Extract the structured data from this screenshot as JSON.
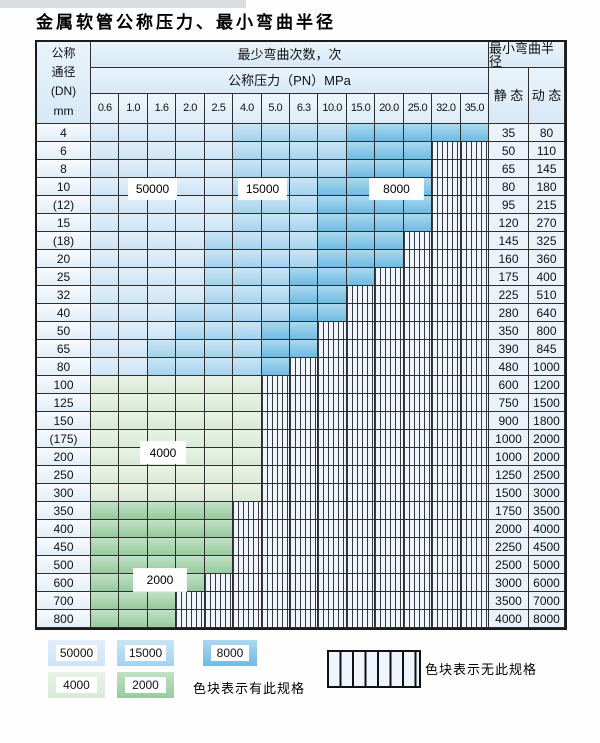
{
  "title": "金属软管公称压力、最小弯曲半径",
  "table": {
    "header": {
      "dn_label_lines": [
        "公称",
        "通径",
        "(DN)",
        "mm"
      ],
      "bend_cycles": "最少弯曲次数，次",
      "pressure": "公称压力（PN）MPa",
      "pressure_values": [
        "0.6",
        "1.0",
        "1.6",
        "2.0",
        "2.5",
        "4.0",
        "5.0",
        "6.3",
        "10.0",
        "15.0",
        "20.0",
        "25.0",
        "32.0",
        "35.0"
      ],
      "radius": "最小弯曲半径",
      "static_label": "静 态",
      "dynamic_label": "动 态"
    },
    "zone_meaning": {
      "b1": "50000次",
      "b2": "15000次",
      "b3": "8000次",
      "g1": "4000次",
      "g2": "2000次",
      "x": "无此规格"
    },
    "rows": [
      {
        "dn": "4",
        "static": "35",
        "dynamic": "80",
        "zones": [
          "b1",
          "b1",
          "b1",
          "b1",
          "b1",
          "b2",
          "b2",
          "b2",
          "b2",
          "b3",
          "b3",
          "b3",
          "b3",
          "b3"
        ]
      },
      {
        "dn": "6",
        "static": "50",
        "dynamic": "110",
        "zones": [
          "b1",
          "b1",
          "b1",
          "b1",
          "b1",
          "b2",
          "b2",
          "b2",
          "b2",
          "b3",
          "b3",
          "b3",
          "x",
          "x"
        ]
      },
      {
        "dn": "8",
        "static": "65",
        "dynamic": "145",
        "zones": [
          "b1",
          "b1",
          "b1",
          "b1",
          "b1",
          "b2",
          "b2",
          "b2",
          "b2",
          "b3",
          "b3",
          "b3",
          "x",
          "x"
        ]
      },
      {
        "dn": "10",
        "static": "80",
        "dynamic": "180",
        "zones": [
          "b1",
          "b1",
          "b1",
          "b1",
          "b1",
          "b2",
          "b2",
          "b2",
          "b3",
          "b3",
          "b3",
          "b3",
          "x",
          "x"
        ]
      },
      {
        "dn": "(12)",
        "static": "95",
        "dynamic": "215",
        "zones": [
          "b1",
          "b1",
          "b1",
          "b1",
          "b1",
          "b2",
          "b2",
          "b2",
          "b3",
          "b3",
          "b3",
          "b3",
          "x",
          "x"
        ]
      },
      {
        "dn": "15",
        "static": "120",
        "dynamic": "270",
        "zones": [
          "b1",
          "b1",
          "b1",
          "b1",
          "b1",
          "b2",
          "b2",
          "b2",
          "b3",
          "b3",
          "b3",
          "b3",
          "x",
          "x"
        ]
      },
      {
        "dn": "(18)",
        "static": "145",
        "dynamic": "325",
        "zones": [
          "b1",
          "b1",
          "b1",
          "b1",
          "b2",
          "b2",
          "b2",
          "b2",
          "b3",
          "b3",
          "b3",
          "x",
          "x",
          "x"
        ]
      },
      {
        "dn": "20",
        "static": "160",
        "dynamic": "360",
        "zones": [
          "b1",
          "b1",
          "b1",
          "b1",
          "b2",
          "b2",
          "b2",
          "b2",
          "b3",
          "b3",
          "b3",
          "x",
          "x",
          "x"
        ]
      },
      {
        "dn": "25",
        "static": "175",
        "dynamic": "400",
        "zones": [
          "b1",
          "b1",
          "b1",
          "b1",
          "b2",
          "b2",
          "b2",
          "b3",
          "b3",
          "b3",
          "x",
          "x",
          "x",
          "x"
        ]
      },
      {
        "dn": "32",
        "static": "225",
        "dynamic": "510",
        "zones": [
          "b1",
          "b1",
          "b1",
          "b1",
          "b2",
          "b2",
          "b2",
          "b3",
          "b3",
          "x",
          "x",
          "x",
          "x",
          "x"
        ]
      },
      {
        "dn": "40",
        "static": "280",
        "dynamic": "640",
        "zones": [
          "b1",
          "b1",
          "b1",
          "b2",
          "b2",
          "b2",
          "b2",
          "b3",
          "b3",
          "x",
          "x",
          "x",
          "x",
          "x"
        ]
      },
      {
        "dn": "50",
        "static": "350",
        "dynamic": "800",
        "zones": [
          "b1",
          "b1",
          "b1",
          "b2",
          "b2",
          "b2",
          "b3",
          "b3",
          "x",
          "x",
          "x",
          "x",
          "x",
          "x"
        ]
      },
      {
        "dn": "65",
        "static": "390",
        "dynamic": "845",
        "zones": [
          "b1",
          "b1",
          "b2",
          "b2",
          "b2",
          "b2",
          "b3",
          "b3",
          "x",
          "x",
          "x",
          "x",
          "x",
          "x"
        ]
      },
      {
        "dn": "80",
        "static": "480",
        "dynamic": "1000",
        "zones": [
          "b1",
          "b1",
          "b2",
          "b2",
          "b2",
          "b2",
          "b3",
          "x",
          "x",
          "x",
          "x",
          "x",
          "x",
          "x"
        ]
      },
      {
        "dn": "100",
        "static": "600",
        "dynamic": "1200",
        "zones": [
          "g1",
          "g1",
          "g1",
          "g1",
          "g1",
          "g1",
          "x",
          "x",
          "x",
          "x",
          "x",
          "x",
          "x",
          "x"
        ]
      },
      {
        "dn": "125",
        "static": "750",
        "dynamic": "1500",
        "zones": [
          "g1",
          "g1",
          "g1",
          "g1",
          "g1",
          "g1",
          "x",
          "x",
          "x",
          "x",
          "x",
          "x",
          "x",
          "x"
        ]
      },
      {
        "dn": "150",
        "static": "900",
        "dynamic": "1800",
        "zones": [
          "g1",
          "g1",
          "g1",
          "g1",
          "g1",
          "g1",
          "x",
          "x",
          "x",
          "x",
          "x",
          "x",
          "x",
          "x"
        ]
      },
      {
        "dn": "(175)",
        "static": "1000",
        "dynamic": "2000",
        "zones": [
          "g1",
          "g1",
          "g1",
          "g1",
          "g1",
          "g1",
          "x",
          "x",
          "x",
          "x",
          "x",
          "x",
          "x",
          "x"
        ]
      },
      {
        "dn": "200",
        "static": "1000",
        "dynamic": "2000",
        "zones": [
          "g1",
          "g1",
          "g1",
          "g1",
          "g1",
          "g1",
          "x",
          "x",
          "x",
          "x",
          "x",
          "x",
          "x",
          "x"
        ]
      },
      {
        "dn": "250",
        "static": "1250",
        "dynamic": "2500",
        "zones": [
          "g1",
          "g1",
          "g1",
          "g1",
          "g1",
          "g1",
          "x",
          "x",
          "x",
          "x",
          "x",
          "x",
          "x",
          "x"
        ]
      },
      {
        "dn": "300",
        "static": "1500",
        "dynamic": "3000",
        "zones": [
          "g1",
          "g1",
          "g1",
          "g1",
          "g1",
          "g1",
          "x",
          "x",
          "x",
          "x",
          "x",
          "x",
          "x",
          "x"
        ]
      },
      {
        "dn": "350",
        "static": "1750",
        "dynamic": "3500",
        "zones": [
          "g2",
          "g2",
          "g2",
          "g2",
          "g2",
          "x",
          "x",
          "x",
          "x",
          "x",
          "x",
          "x",
          "x",
          "x"
        ]
      },
      {
        "dn": "400",
        "static": "2000",
        "dynamic": "4000",
        "zones": [
          "g2",
          "g2",
          "g2",
          "g2",
          "g2",
          "x",
          "x",
          "x",
          "x",
          "x",
          "x",
          "x",
          "x",
          "x"
        ]
      },
      {
        "dn": "450",
        "static": "2250",
        "dynamic": "4500",
        "zones": [
          "g2",
          "g2",
          "g2",
          "g2",
          "g2",
          "x",
          "x",
          "x",
          "x",
          "x",
          "x",
          "x",
          "x",
          "x"
        ]
      },
      {
        "dn": "500",
        "static": "2500",
        "dynamic": "5000",
        "zones": [
          "g2",
          "g2",
          "g2",
          "g2",
          "g2",
          "x",
          "x",
          "x",
          "x",
          "x",
          "x",
          "x",
          "x",
          "x"
        ]
      },
      {
        "dn": "600",
        "static": "3000",
        "dynamic": "6000",
        "zones": [
          "g2",
          "g2",
          "g2",
          "g2",
          "x",
          "x",
          "x",
          "x",
          "x",
          "x",
          "x",
          "x",
          "x",
          "x"
        ]
      },
      {
        "dn": "700",
        "static": "3500",
        "dynamic": "7000",
        "zones": [
          "g2",
          "g2",
          "g2",
          "x",
          "x",
          "x",
          "x",
          "x",
          "x",
          "x",
          "x",
          "x",
          "x",
          "x"
        ]
      },
      {
        "dn": "800",
        "static": "4000",
        "dynamic": "8000",
        "zones": [
          "g2",
          "g2",
          "g2",
          "x",
          "x",
          "x",
          "x",
          "x",
          "x",
          "x",
          "x",
          "x",
          "x",
          "x"
        ]
      }
    ]
  },
  "overlays": {
    "l50000": "50000",
    "l15000": "15000",
    "l8000": "8000",
    "l4000": "4000",
    "l2000": "2000"
  },
  "legend": {
    "items": [
      {
        "value": "50000",
        "type": "b1"
      },
      {
        "value": "15000",
        "type": "b2"
      },
      {
        "value": "8000",
        "type": "b3"
      },
      {
        "value": "4000",
        "type": "g1"
      },
      {
        "value": "2000",
        "type": "g2"
      }
    ],
    "has_spec_text": "色块表示有此规格",
    "no_spec_text": "色块表示无此规格"
  },
  "colors": {
    "b1": "#cde4f6",
    "b2": "#a4d2ee",
    "b3": "#6fbbe2",
    "g1": "#d9ead6",
    "g2": "#96cb9d",
    "hatch_bg": "#eef5fc",
    "hatch_line": "#3a3a3a",
    "grid_line": "#2e2e2e"
  }
}
